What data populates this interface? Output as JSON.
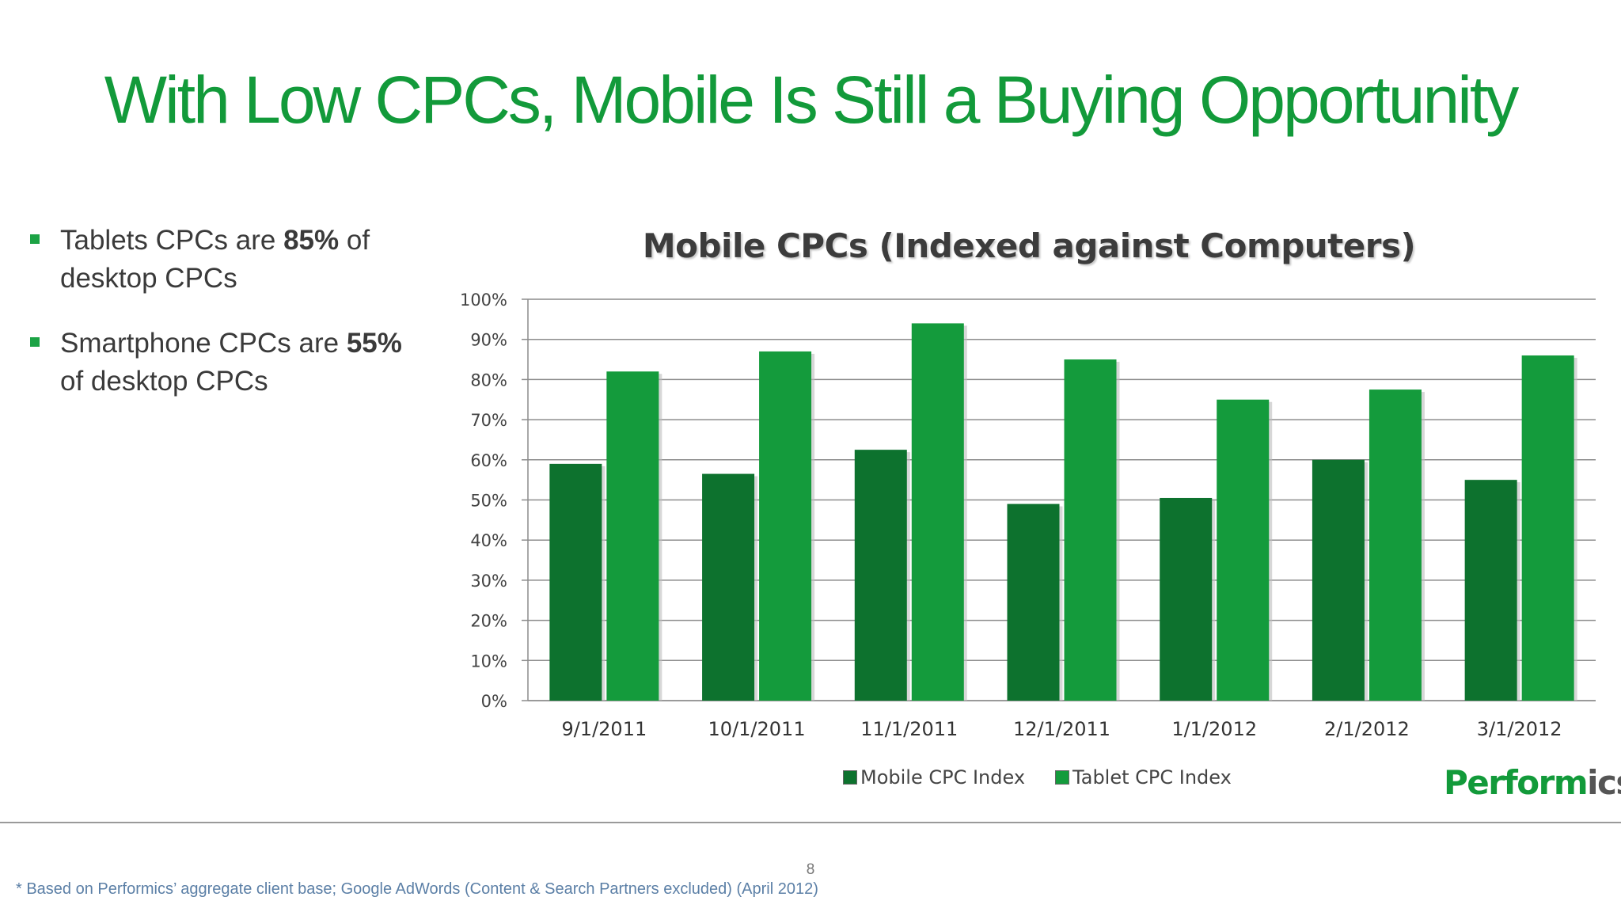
{
  "slide": {
    "title": "With Low CPCs, Mobile Is Still a Buying Opportunity",
    "bullets": [
      {
        "before": "Tablets CPCs are ",
        "bold": "85%",
        "after": " of desktop CPCs"
      },
      {
        "before": "Smartphone CPCs are ",
        "bold": "55%",
        "after": " of desktop CPCs"
      }
    ],
    "logo": {
      "main": "Perform",
      "tail": "ics"
    },
    "page_number": "8",
    "footnote": "* Based on Performics’ aggregate client base; Google AdWords (Content & Search Partners excluded) (April 2012)"
  },
  "colors": {
    "title": "#129a3a",
    "mobile": "#0d722e",
    "tablet": "#149b3c",
    "footnote": "#5b7fa6"
  },
  "chart_data": {
    "type": "bar",
    "title": "Mobile CPCs (Indexed against Computers)",
    "categories": [
      "9/1/2011",
      "10/1/2011",
      "11/1/2011",
      "12/1/2011",
      "1/1/2012",
      "2/1/2012",
      "3/1/2012"
    ],
    "series": [
      {
        "name": "Mobile CPC Index",
        "values": [
          59,
          56.5,
          62.5,
          49,
          50.5,
          60,
          55
        ]
      },
      {
        "name": "Tablet CPC Index",
        "values": [
          82,
          87,
          94,
          85,
          75,
          77.5,
          86
        ]
      }
    ],
    "ylim": [
      0,
      100
    ],
    "yticks": [
      "0%",
      "10%",
      "20%",
      "30%",
      "40%",
      "50%",
      "60%",
      "70%",
      "80%",
      "90%",
      "100%"
    ],
    "grid": true,
    "legend": "bottom"
  }
}
